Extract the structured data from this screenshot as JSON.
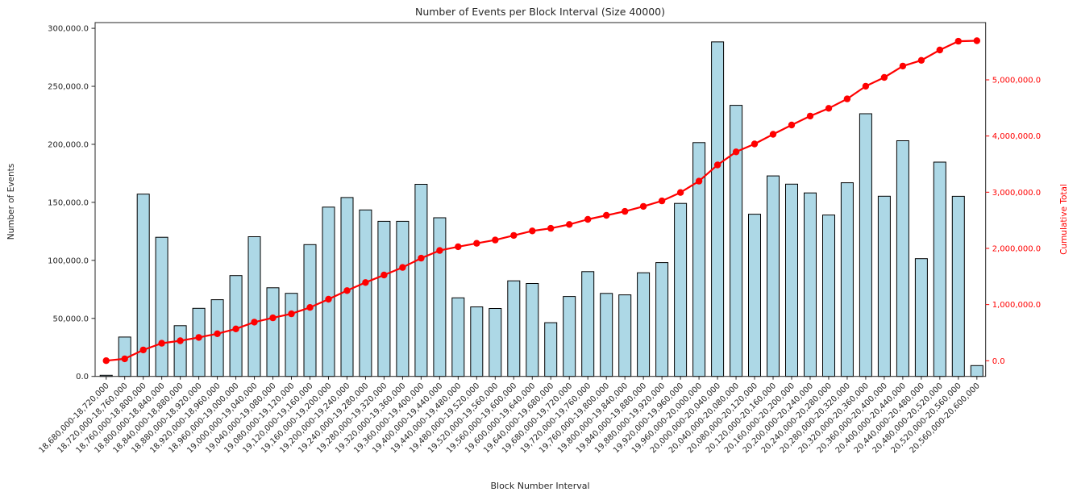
{
  "figure": {
    "title": "Number of Events per Block Interval (Size 40000)",
    "x_axis_label": "Block Number Interval",
    "y_axis_left_label": "Number of Events",
    "y_axis_right_label": "Cumulative Total"
  },
  "chart_data": {
    "type": "bar",
    "title": "Number of Events per Block Interval (Size 40000)",
    "xlabel": "Block Number Interval",
    "ylabel_left": "Number of Events",
    "ylabel_right": "Cumulative Total",
    "legend": "none",
    "grid": false,
    "colors": {
      "bar_fill": "#ADD8E6",
      "bar_edge": "#000000",
      "line": "#FF0000",
      "axis_text": "#262626",
      "right_axis_text": "#FF0000"
    },
    "left_axis": {
      "range": [
        0,
        300000
      ],
      "ticks": [
        0,
        50000,
        100000,
        150000,
        200000,
        250000,
        300000
      ]
    },
    "right_axis": {
      "ticks": [
        0,
        1000000,
        2000000,
        3000000,
        4000000,
        5000000
      ]
    },
    "categories": [
      "18,680,000-18,720,000",
      "18,720,000-18,760,000",
      "18,760,000-18,800,000",
      "18,800,000-18,840,000",
      "18,840,000-18,880,000",
      "18,880,000-18,920,000",
      "18,920,000-18,960,000",
      "18,960,000-19,000,000",
      "19,000,000-19,040,000",
      "19,040,000-19,080,000",
      "19,080,000-19,120,000",
      "19,120,000-19,160,000",
      "19,160,000-19,200,000",
      "19,200,000-19,240,000",
      "19,240,000-19,280,000",
      "19,280,000-19,320,000",
      "19,320,000-19,360,000",
      "19,360,000-19,400,000",
      "19,400,000-19,440,000",
      "19,440,000-19,480,000",
      "19,480,000-19,520,000",
      "19,520,000-19,560,000",
      "19,560,000-19,600,000",
      "19,600,000-19,640,000",
      "19,640,000-19,680,000",
      "19,680,000-19,720,000",
      "19,720,000-19,760,000",
      "19,760,000-19,800,000",
      "19,800,000-19,840,000",
      "19,840,000-19,880,000",
      "19,880,000-19,920,000",
      "19,920,000-19,960,000",
      "19,960,000-20,000,000",
      "20,000,000-20,040,000",
      "20,040,000-20,080,000",
      "20,080,000-20,120,000",
      "20,120,000-20,160,000",
      "20,160,000-20,200,000",
      "20,200,000-20,240,000",
      "20,240,000-20,280,000",
      "20,280,000-20,320,000",
      "20,320,000-20,360,000",
      "20,360,000-20,400,000",
      "20,400,000-20,440,000",
      "20,440,000-20,480,000",
      "20,480,000-20,520,000",
      "20,520,000-20,560,000",
      "20,560,000-20,600,000"
    ],
    "series": [
      {
        "name": "Number of Events",
        "type": "bar",
        "axis": "left",
        "values": [
          1000,
          33900,
          157100,
          119900,
          43700,
          58700,
          66100,
          86900,
          120400,
          76400,
          71600,
          113600,
          145900,
          154200,
          143500,
          133700,
          133700,
          165600,
          136700,
          67700,
          59900,
          58500,
          82400,
          80100,
          46300,
          68900,
          90300,
          71500,
          70300,
          89300,
          98100,
          149100,
          201500,
          288300,
          233600,
          139800,
          172800,
          165700,
          158100,
          139100,
          166900,
          226400,
          155300,
          203100,
          101500,
          184700,
          155200,
          9300
        ]
      },
      {
        "name": "Cumulative Total",
        "type": "line",
        "axis": "right",
        "values": [
          1000,
          34900,
          192000,
          311900,
          355600,
          414300,
          480400,
          567300,
          687700,
          764100,
          835700,
          949300,
          1095200,
          1249400,
          1392900,
          1526600,
          1660300,
          1825900,
          1962600,
          2030300,
          2090200,
          2148700,
          2231100,
          2311200,
          2357500,
          2426400,
          2516700,
          2588200,
          2658500,
          2747800,
          2845900,
          2995000,
          3196500,
          3484800,
          3718400,
          3858200,
          4031000,
          4196700,
          4354800,
          4493900,
          4660800,
          4887200,
          5042500,
          5245600,
          5347100,
          5531800,
          5687000,
          5696300
        ]
      }
    ]
  }
}
